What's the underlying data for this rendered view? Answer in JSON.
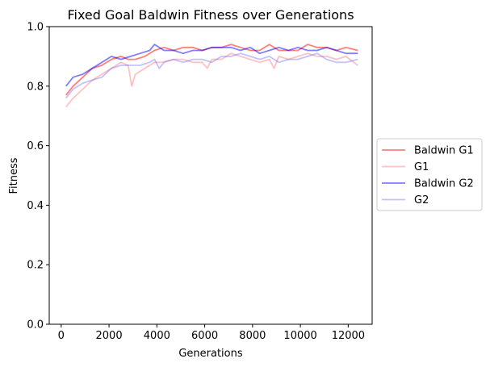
{
  "chart_data": {
    "type": "line",
    "title": "Fixed Goal Baldwin Fitness over Generations",
    "xlabel": "Generations",
    "ylabel": "Fitness",
    "xlim": [
      -500,
      13000
    ],
    "ylim": [
      0,
      1.0
    ],
    "xticks": [
      0,
      2000,
      4000,
      6000,
      8000,
      10000,
      12000
    ],
    "xtick_labels": [
      "0",
      "2000",
      "4000",
      "6000",
      "8000",
      "10000",
      "12000"
    ],
    "yticks": [
      0,
      0.2,
      0.4,
      0.6,
      0.8,
      1.0
    ],
    "ytick_labels": [
      "0.0",
      "0.2",
      "0.4",
      "0.6",
      "0.8",
      "1.0"
    ],
    "grid": false,
    "legend": "outside-right",
    "series": [
      {
        "name": "Baldwin G1",
        "color": "#ff0000",
        "opacity": 0.5,
        "x": [
          200,
          500,
          900,
          1300,
          1700,
          2100,
          2500,
          2800,
          3100,
          3500,
          3900,
          4300,
          4700,
          5100,
          5500,
          5900,
          6300,
          6700,
          7100,
          7500,
          7900,
          8300,
          8700,
          9100,
          9500,
          9900,
          10300,
          10700,
          11100,
          11500,
          11900,
          12400
        ],
        "y": [
          0.77,
          0.8,
          0.83,
          0.86,
          0.87,
          0.89,
          0.9,
          0.89,
          0.89,
          0.9,
          0.92,
          0.93,
          0.92,
          0.93,
          0.93,
          0.92,
          0.93,
          0.93,
          0.94,
          0.93,
          0.92,
          0.92,
          0.94,
          0.92,
          0.92,
          0.92,
          0.94,
          0.93,
          0.93,
          0.92,
          0.93,
          0.92
        ]
      },
      {
        "name": "G1",
        "color": "#ff6666",
        "opacity": 0.4,
        "x": [
          200,
          500,
          900,
          1300,
          1700,
          2100,
          2500,
          2800,
          2950,
          3100,
          3500,
          3900,
          4200,
          4700,
          5100,
          5500,
          5900,
          6100,
          6300,
          6700,
          7100,
          7500,
          7900,
          8300,
          8700,
          8900,
          9100,
          9500,
          9900,
          10300,
          10700,
          11100,
          11500,
          11900,
          12400
        ],
        "y": [
          0.73,
          0.76,
          0.79,
          0.82,
          0.84,
          0.86,
          0.88,
          0.87,
          0.8,
          0.84,
          0.86,
          0.88,
          0.88,
          0.89,
          0.89,
          0.88,
          0.88,
          0.86,
          0.89,
          0.89,
          0.91,
          0.9,
          0.89,
          0.88,
          0.89,
          0.86,
          0.9,
          0.89,
          0.9,
          0.91,
          0.9,
          0.9,
          0.89,
          0.9,
          0.87
        ]
      },
      {
        "name": "Baldwin G2",
        "color": "#0000ff",
        "opacity": 0.5,
        "x": [
          200,
          500,
          900,
          1300,
          1700,
          2100,
          2500,
          2900,
          3300,
          3700,
          3900,
          4300,
          4700,
          5100,
          5500,
          5900,
          6300,
          6700,
          7100,
          7500,
          7900,
          8300,
          8700,
          9100,
          9500,
          9900,
          10300,
          10700,
          11100,
          11500,
          11900,
          12400
        ],
        "y": [
          0.8,
          0.83,
          0.84,
          0.86,
          0.88,
          0.9,
          0.89,
          0.9,
          0.91,
          0.92,
          0.94,
          0.92,
          0.92,
          0.91,
          0.92,
          0.92,
          0.93,
          0.93,
          0.93,
          0.92,
          0.93,
          0.91,
          0.92,
          0.93,
          0.92,
          0.93,
          0.92,
          0.92,
          0.93,
          0.92,
          0.91,
          0.91
        ]
      },
      {
        "name": "G2",
        "color": "#6666ff",
        "opacity": 0.4,
        "x": [
          200,
          500,
          900,
          1300,
          1700,
          2100,
          2500,
          2900,
          3300,
          3700,
          3900,
          4100,
          4300,
          4700,
          5100,
          5500,
          5900,
          6300,
          6700,
          7100,
          7500,
          7900,
          8300,
          8700,
          9100,
          9500,
          9900,
          10300,
          10700,
          11100,
          11500,
          11900,
          12400
        ],
        "y": [
          0.76,
          0.79,
          0.81,
          0.82,
          0.83,
          0.86,
          0.87,
          0.87,
          0.87,
          0.88,
          0.89,
          0.86,
          0.88,
          0.89,
          0.88,
          0.89,
          0.89,
          0.88,
          0.9,
          0.9,
          0.91,
          0.9,
          0.89,
          0.9,
          0.88,
          0.89,
          0.89,
          0.9,
          0.91,
          0.89,
          0.88,
          0.88,
          0.89
        ]
      }
    ]
  }
}
